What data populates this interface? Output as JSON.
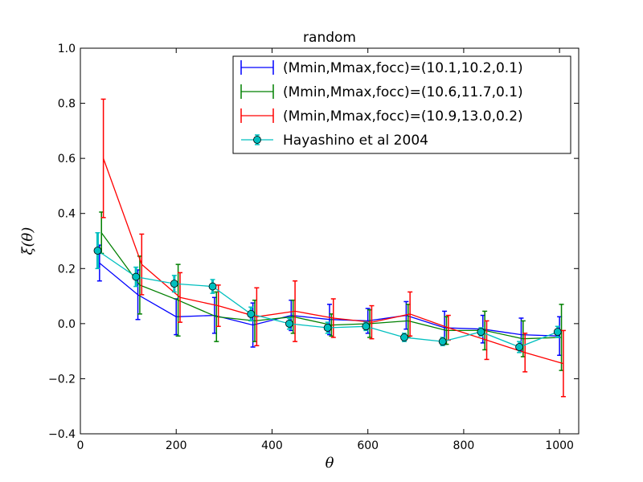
{
  "chart_data": {
    "type": "line",
    "title": "random",
    "xlabel": "θ",
    "ylabel": "ξ(θ)",
    "xlim": [
      0,
      1040
    ],
    "ylim": [
      -0.4,
      1.0
    ],
    "xticks": [
      0,
      200,
      400,
      600,
      800,
      1000
    ],
    "yticks": [
      -0.4,
      -0.2,
      0.0,
      0.2,
      0.4,
      0.6,
      0.8,
      1.0
    ],
    "xtick_labels": [
      "0",
      "200",
      "400",
      "600",
      "800",
      "1000"
    ],
    "ytick_labels": [
      "−0.4",
      "−0.2",
      "0.0",
      "0.2",
      "0.4",
      "0.6",
      "0.8",
      "1.0"
    ],
    "grid": false,
    "legend_placement": "top-right",
    "series": [
      {
        "name": "(Mmin,Mmax,focc)=(10.1,10.2,0.1)",
        "color": "#0000ff",
        "marker": "none",
        "x": [
          40,
          120,
          200,
          280,
          360,
          440,
          520,
          600,
          680,
          760,
          840,
          920,
          1000
        ],
        "y": [
          0.22,
          0.105,
          0.025,
          0.03,
          -0.005,
          0.03,
          0.015,
          0.01,
          0.03,
          -0.015,
          -0.02,
          -0.04,
          -0.045
        ],
        "err": [
          0.065,
          0.09,
          0.065,
          0.065,
          0.08,
          0.055,
          0.055,
          0.045,
          0.05,
          0.06,
          0.05,
          0.06,
          0.07
        ]
      },
      {
        "name": "(Mmin,Mmax,focc)=(10.6,11.7,0.1)",
        "color": "#008000",
        "marker": "none",
        "x": [
          44,
          124,
          204,
          284,
          364,
          444,
          524,
          604,
          684,
          764,
          844,
          924,
          1004
        ],
        "y": [
          0.33,
          0.14,
          0.085,
          0.025,
          0.01,
          0.025,
          -0.005,
          0.0,
          0.01,
          -0.025,
          -0.025,
          -0.055,
          -0.05
        ],
        "err": [
          0.075,
          0.105,
          0.13,
          0.09,
          0.075,
          0.06,
          0.04,
          0.05,
          0.06,
          0.05,
          0.07,
          0.065,
          0.12
        ]
      },
      {
        "name": "(Mmin,Mmax,focc)=(10.9,13.0,0.2)",
        "color": "#ff0000",
        "marker": "none",
        "x": [
          48,
          128,
          208,
          288,
          368,
          448,
          528,
          608,
          688,
          768,
          848,
          928,
          1008
        ],
        "y": [
          0.6,
          0.215,
          0.095,
          0.065,
          0.025,
          0.045,
          0.02,
          0.005,
          0.035,
          -0.015,
          -0.06,
          -0.105,
          -0.145
        ],
        "err": [
          0.215,
          0.11,
          0.09,
          0.075,
          0.105,
          0.11,
          0.07,
          0.06,
          0.08,
          0.045,
          0.07,
          0.07,
          0.12
        ]
      },
      {
        "name": "Hayashino et al 2004",
        "color": "#00bfbf",
        "marker": "circle",
        "x": [
          36,
          116,
          196,
          276,
          356,
          436,
          516,
          596,
          676,
          756,
          836,
          916,
          996
        ],
        "y": [
          0.265,
          0.17,
          0.145,
          0.135,
          0.035,
          0.0,
          -0.015,
          -0.01,
          -0.05,
          -0.065,
          -0.03,
          -0.085,
          -0.03
        ],
        "err": [
          0.065,
          0.035,
          0.03,
          0.025,
          0.025,
          0.02,
          0.02,
          0.015,
          0.015,
          0.015,
          0.015,
          0.02,
          0.02
        ]
      }
    ]
  }
}
